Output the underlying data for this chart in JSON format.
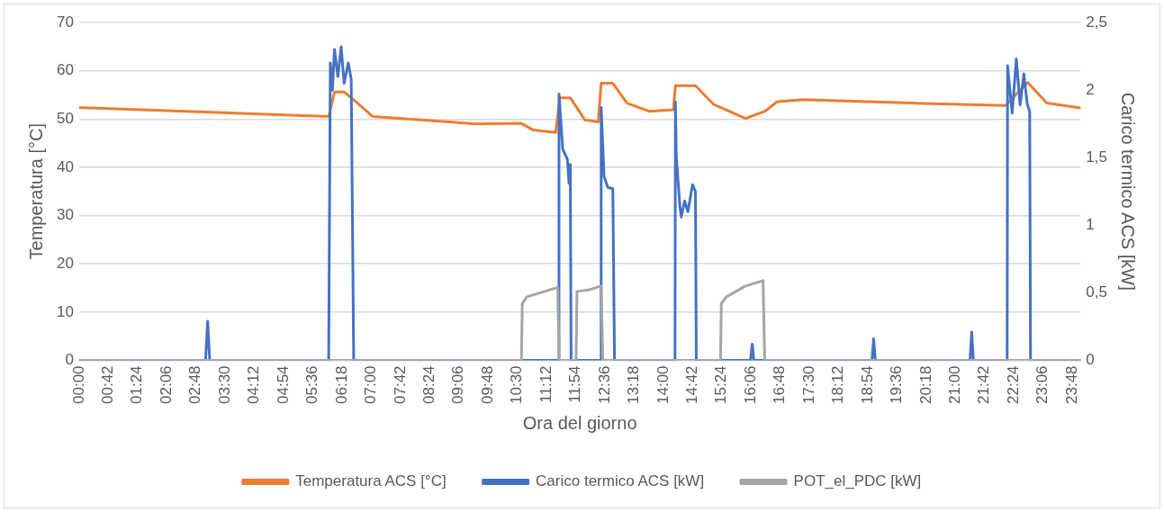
{
  "chart_data": {
    "type": "line",
    "xlabel": "Ora del giorno",
    "ylabel": "Temperatura [°C]",
    "y2label": "Carico termico ACS [kW]",
    "xlim": [
      0,
      24
    ],
    "xticks": [
      {
        "value": 0,
        "label": "00:00"
      },
      {
        "value": 0.7,
        "label": "00:42"
      },
      {
        "value": 1.4,
        "label": "01:24"
      },
      {
        "value": 2.1,
        "label": "02:06"
      },
      {
        "value": 2.8,
        "label": "02:48"
      },
      {
        "value": 3.5,
        "label": "03:30"
      },
      {
        "value": 4.2,
        "label": "04:12"
      },
      {
        "value": 4.9,
        "label": "04:54"
      },
      {
        "value": 5.6,
        "label": "05:36"
      },
      {
        "value": 6.3,
        "label": "06:18"
      },
      {
        "value": 7,
        "label": "07:00"
      },
      {
        "value": 7.7,
        "label": "07:42"
      },
      {
        "value": 8.4,
        "label": "08:24"
      },
      {
        "value": 9.1,
        "label": "09:06"
      },
      {
        "value": 9.8,
        "label": "09:48"
      },
      {
        "value": 10.5,
        "label": "10:30"
      },
      {
        "value": 11.2,
        "label": "11:12"
      },
      {
        "value": 11.9,
        "label": "11:54"
      },
      {
        "value": 12.6,
        "label": "12:36"
      },
      {
        "value": 13.3,
        "label": "13:18"
      },
      {
        "value": 14,
        "label": "14:00"
      },
      {
        "value": 14.7,
        "label": "14:42"
      },
      {
        "value": 15.4,
        "label": "15:24"
      },
      {
        "value": 16.1,
        "label": "16:06"
      },
      {
        "value": 16.8,
        "label": "16:48"
      },
      {
        "value": 17.5,
        "label": "17:30"
      },
      {
        "value": 18.2,
        "label": "18:12"
      },
      {
        "value": 18.9,
        "label": "18:54"
      },
      {
        "value": 19.6,
        "label": "19:36"
      },
      {
        "value": 20.3,
        "label": "20:18"
      },
      {
        "value": 21,
        "label": "21:00"
      },
      {
        "value": 21.7,
        "label": "21:42"
      },
      {
        "value": 22.4,
        "label": "22:24"
      },
      {
        "value": 23.1,
        "label": "23:06"
      },
      {
        "value": 23.8,
        "label": "23:48"
      }
    ],
    "ylim": [
      0,
      70
    ],
    "yticks": [
      0,
      10,
      20,
      30,
      40,
      50,
      60,
      70
    ],
    "y2lim": [
      0,
      2.5
    ],
    "y2ticks": [
      0,
      {
        "value": 0.5,
        "label": "0,5"
      },
      1,
      {
        "value": 1.5,
        "label": "1,5"
      },
      2,
      {
        "value": 2.5,
        "label": "2,5"
      }
    ],
    "grid": "y",
    "legend": "bottom",
    "marker": "none",
    "line_style": "solid",
    "series": [
      {
        "name": "Temperatura ACS [°C]",
        "color": "#ed7d31",
        "x": [
          0,
          5.98,
          6.12,
          6.35,
          6.58,
          7.04,
          9.51,
          10.59,
          10.89,
          11.42,
          11.52,
          11.77,
          12.12,
          12.44,
          12.51,
          12.79,
          13.13,
          13.66,
          14.24,
          14.29,
          14.77,
          15.21,
          15.58,
          15.97,
          16.43,
          16.73,
          17.35,
          19.96,
          22.2,
          22.73,
          23.19,
          24
        ],
        "values": [
          52.4,
          50.5,
          55.6,
          55.6,
          54.0,
          50.5,
          49.0,
          49.1,
          47.7,
          47.2,
          54.4,
          54.4,
          49.8,
          49.4,
          57.4,
          57.4,
          53.3,
          51.6,
          51.9,
          56.9,
          56.9,
          53.0,
          51.6,
          50.1,
          51.6,
          53.6,
          54.0,
          53.3,
          52.8,
          57.6,
          53.3,
          52.3
        ]
      },
      {
        "name": "Carico termico ACS [kW]",
        "color": "#4472c4",
        "axis": "y2",
        "x": [
          0,
          3.03,
          3.08,
          3.13,
          5.98,
          6.02,
          6.07,
          6.12,
          6.2,
          6.28,
          6.35,
          6.45,
          6.52,
          6.58,
          11.49,
          11.5,
          11.59,
          11.7,
          11.74,
          11.77,
          11.79,
          12.5,
          12.51,
          12.58,
          12.67,
          12.79,
          12.83,
          14.28,
          14.29,
          14.31,
          14.4,
          14.43,
          14.51,
          14.59,
          14.7,
          14.77,
          14.79,
          16.09,
          16.13,
          16.17,
          19.0,
          19.04,
          19.08,
          21.35,
          21.39,
          21.43,
          22.24,
          22.25,
          22.36,
          22.46,
          22.55,
          22.64,
          22.72,
          22.78,
          22.8,
          24
        ],
        "values": [
          0,
          0,
          0.29,
          0,
          0,
          2.2,
          2.0,
          2.3,
          2.1,
          2.32,
          2.05,
          2.2,
          2.08,
          0,
          0,
          1.97,
          1.56,
          1.49,
          1.31,
          1.45,
          0,
          0,
          1.87,
          1.36,
          1.28,
          1.27,
          0,
          0,
          1.91,
          1.51,
          1.13,
          1.06,
          1.18,
          1.1,
          1.3,
          1.25,
          0,
          0,
          0.12,
          0,
          0,
          0.16,
          0,
          0,
          0.21,
          0,
          0,
          2.18,
          1.83,
          2.23,
          1.89,
          2.12,
          1.9,
          1.84,
          0,
          0
        ]
      },
      {
        "name": "POT_el_PDC [kW]",
        "color": "#a5a5a5",
        "axis": "y2",
        "x": [
          0,
          10.6,
          10.62,
          10.73,
          11.05,
          11.47,
          11.5,
          11.91,
          11.93,
          12.2,
          12.51,
          12.55,
          15.37,
          15.39,
          15.51,
          15.97,
          16.39,
          16.43,
          24
        ],
        "values": [
          0,
          0,
          0.42,
          0.47,
          0.5,
          0.54,
          0,
          0,
          0.51,
          0.52,
          0.55,
          0,
          0,
          0.42,
          0.47,
          0.55,
          0.59,
          0,
          0
        ]
      }
    ]
  }
}
